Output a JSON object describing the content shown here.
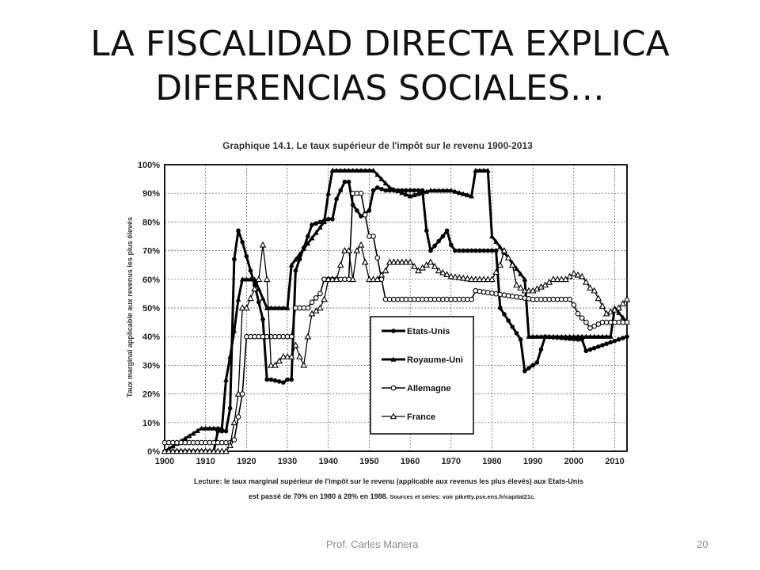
{
  "slide": {
    "title_line1": "LA FISCALIDAD DIRECTA EXPLICA",
    "title_line2": "DIFERENCIAS SOCIALES…",
    "footer_author": "Prof. Carles Manera",
    "page_number": "20"
  },
  "chart_data": {
    "type": "line",
    "title": "Graphique 14.1. Le taux supérieur de l'impôt sur le revenu 1900-2013",
    "ylabel": "Taux marginal applicable aux revenus les plus élevés",
    "xlabel": "",
    "xlim": [
      1900,
      2013
    ],
    "ylim": [
      0,
      100
    ],
    "x_ticks": [
      "1900",
      "1910",
      "1920",
      "1930",
      "1940",
      "1950",
      "1960",
      "1970",
      "1980",
      "1990",
      "2000",
      "2010"
    ],
    "y_ticks": [
      "0%",
      "10%",
      "20%",
      "30%",
      "40%",
      "50%",
      "60%",
      "70%",
      "80%",
      "90%",
      "100%"
    ],
    "grid": true,
    "legend_position": "bottom-center",
    "caption_line1": "Lecture: le taux marginal supérieur de l'impôt sur le revenu (applicable aux revenus les plus élevés) aux Etats-Unis",
    "caption_line2": "est passé de 70% en 1980 à 28% en 1988.",
    "caption_sources": " Sources et séries: voir piketty.pse.ens.fr/capital21c.",
    "series": [
      {
        "name": "Etats-Unis",
        "marker": "filled-circle",
        "x": [
          1900,
          1912,
          1913,
          1915,
          1916,
          1917,
          1918,
          1919,
          1922,
          1924,
          1925,
          1926,
          1929,
          1930,
          1931,
          1932,
          1936,
          1940,
          1941,
          1942,
          1944,
          1945,
          1946,
          1948,
          1950,
          1951,
          1952,
          1954,
          1963,
          1964,
          1965,
          1968,
          1969,
          1970,
          1971,
          1981,
          1982,
          1987,
          1988,
          1991,
          1993,
          2001,
          2002,
          2003,
          2013
        ],
        "y": [
          0,
          0,
          7,
          7,
          15,
          67,
          77,
          73,
          58,
          46,
          25,
          25,
          24,
          25,
          25,
          63,
          79,
          81,
          81,
          88,
          94,
          94,
          86,
          82,
          84,
          91,
          92,
          91,
          91,
          77,
          70,
          75,
          77,
          72,
          70,
          70,
          50,
          39,
          28,
          31,
          40,
          39,
          39,
          35,
          40
        ]
      },
      {
        "name": "Royaume-Uni",
        "marker": "filled-triangle",
        "x": [
          1900,
          1909,
          1914,
          1915,
          1916,
          1917,
          1918,
          1919,
          1920,
          1922,
          1925,
          1930,
          1931,
          1939,
          1940,
          1941,
          1945,
          1951,
          1953,
          1955,
          1960,
          1965,
          1970,
          1975,
          1976,
          1979,
          1980,
          1988,
          1989,
          2009,
          2010,
          2013
        ],
        "y": [
          0,
          8,
          8,
          25,
          33,
          42,
          53,
          60,
          60,
          60,
          50,
          50,
          65,
          80,
          90,
          98,
          98,
          98,
          95,
          92,
          89,
          91,
          91,
          89,
          98,
          98,
          75,
          60,
          40,
          40,
          50,
          45
        ]
      },
      {
        "name": "Allemagne",
        "marker": "open-circle",
        "x": [
          1900,
          1916,
          1917,
          1919,
          1920,
          1925,
          1926,
          1931,
          1932,
          1934,
          1935,
          1936,
          1938,
          1939,
          1945,
          1946,
          1948,
          1950,
          1951,
          1953,
          1954,
          1957,
          1975,
          1976,
          1990,
          1991,
          1999,
          2000,
          2001,
          2003,
          2004,
          2007,
          2013
        ],
        "y": [
          3,
          3,
          4,
          20,
          40,
          40,
          40,
          40,
          50,
          50,
          50,
          52,
          55,
          60,
          60,
          90,
          90,
          75,
          75,
          60,
          53,
          53,
          53,
          56,
          53,
          53,
          53,
          51,
          48,
          45,
          43,
          45,
          45
        ]
      },
      {
        "name": "France",
        "marker": "open-triangle",
        "x": [
          1900,
          1915,
          1916,
          1917,
          1918,
          1919,
          1920,
          1923,
          1924,
          1925,
          1926,
          1927,
          1929,
          1931,
          1932,
          1933,
          1934,
          1935,
          1936,
          1938,
          1939,
          1940,
          1942,
          1944,
          1945,
          1946,
          1947,
          1948,
          1950,
          1952,
          1954,
          1955,
          1960,
          1962,
          1965,
          1967,
          1970,
          1975,
          1980,
          1982,
          1983,
          1985,
          1986,
          1988,
          1990,
          1993,
          1995,
          1998,
          1999,
          2000,
          2002,
          2004,
          2005,
          2008,
          2011,
          2013
        ],
        "y": [
          0,
          0,
          2,
          10,
          20,
          50,
          50,
          60,
          72,
          60,
          30,
          30,
          33,
          33,
          37,
          33,
          30,
          40,
          48,
          50,
          53,
          60,
          60,
          70,
          70,
          60,
          70,
          72,
          60,
          60,
          63,
          66,
          66,
          63,
          66,
          63,
          61,
          60,
          60,
          65,
          70,
          65,
          58,
          56,
          56,
          58,
          60,
          60,
          61,
          62,
          61,
          57,
          56,
          48,
          50,
          53
        ]
      }
    ]
  }
}
